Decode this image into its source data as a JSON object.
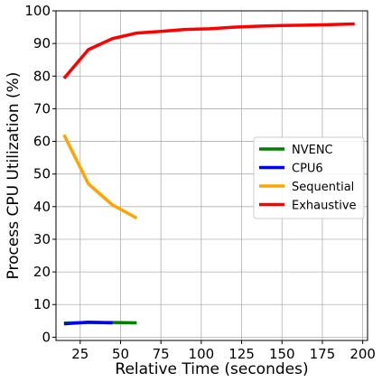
{
  "chart_data": {
    "type": "line",
    "title": "",
    "xlabel": "Relative Time (secondes)",
    "ylabel": "Process CPU Utilization (%)",
    "xlim": [
      10,
      203
    ],
    "ylim": [
      -1,
      100
    ],
    "xticks": [
      25,
      50,
      75,
      100,
      125,
      150,
      175,
      200
    ],
    "yticks": [
      0,
      10,
      20,
      30,
      40,
      50,
      60,
      70,
      80,
      90,
      100
    ],
    "grid": true,
    "legend_position": "center-right",
    "series": [
      {
        "name": "NVENC",
        "color": "#008000",
        "x": [
          15,
          30,
          45,
          60
        ],
        "y": [
          4.3,
          4.5,
          4.5,
          4.4
        ]
      },
      {
        "name": "CPU6",
        "color": "#0000ff",
        "x": [
          15,
          30,
          45
        ],
        "y": [
          4.1,
          4.6,
          4.4
        ]
      },
      {
        "name": "Sequential",
        "color": "#ffa500",
        "x": [
          15,
          30,
          45,
          60
        ],
        "y": [
          62,
          47,
          40.5,
          36.5
        ]
      },
      {
        "name": "Exhaustive",
        "color": "#ff0000",
        "x": [
          15,
          30,
          45,
          60,
          75,
          90,
          105,
          120,
          135,
          150,
          165,
          180,
          195
        ],
        "y": [
          79.3,
          88.1,
          91.5,
          93.2,
          93.7,
          94.3,
          94.5,
          95.0,
          95.3,
          95.5,
          95.6,
          95.8,
          96.0
        ]
      }
    ]
  }
}
